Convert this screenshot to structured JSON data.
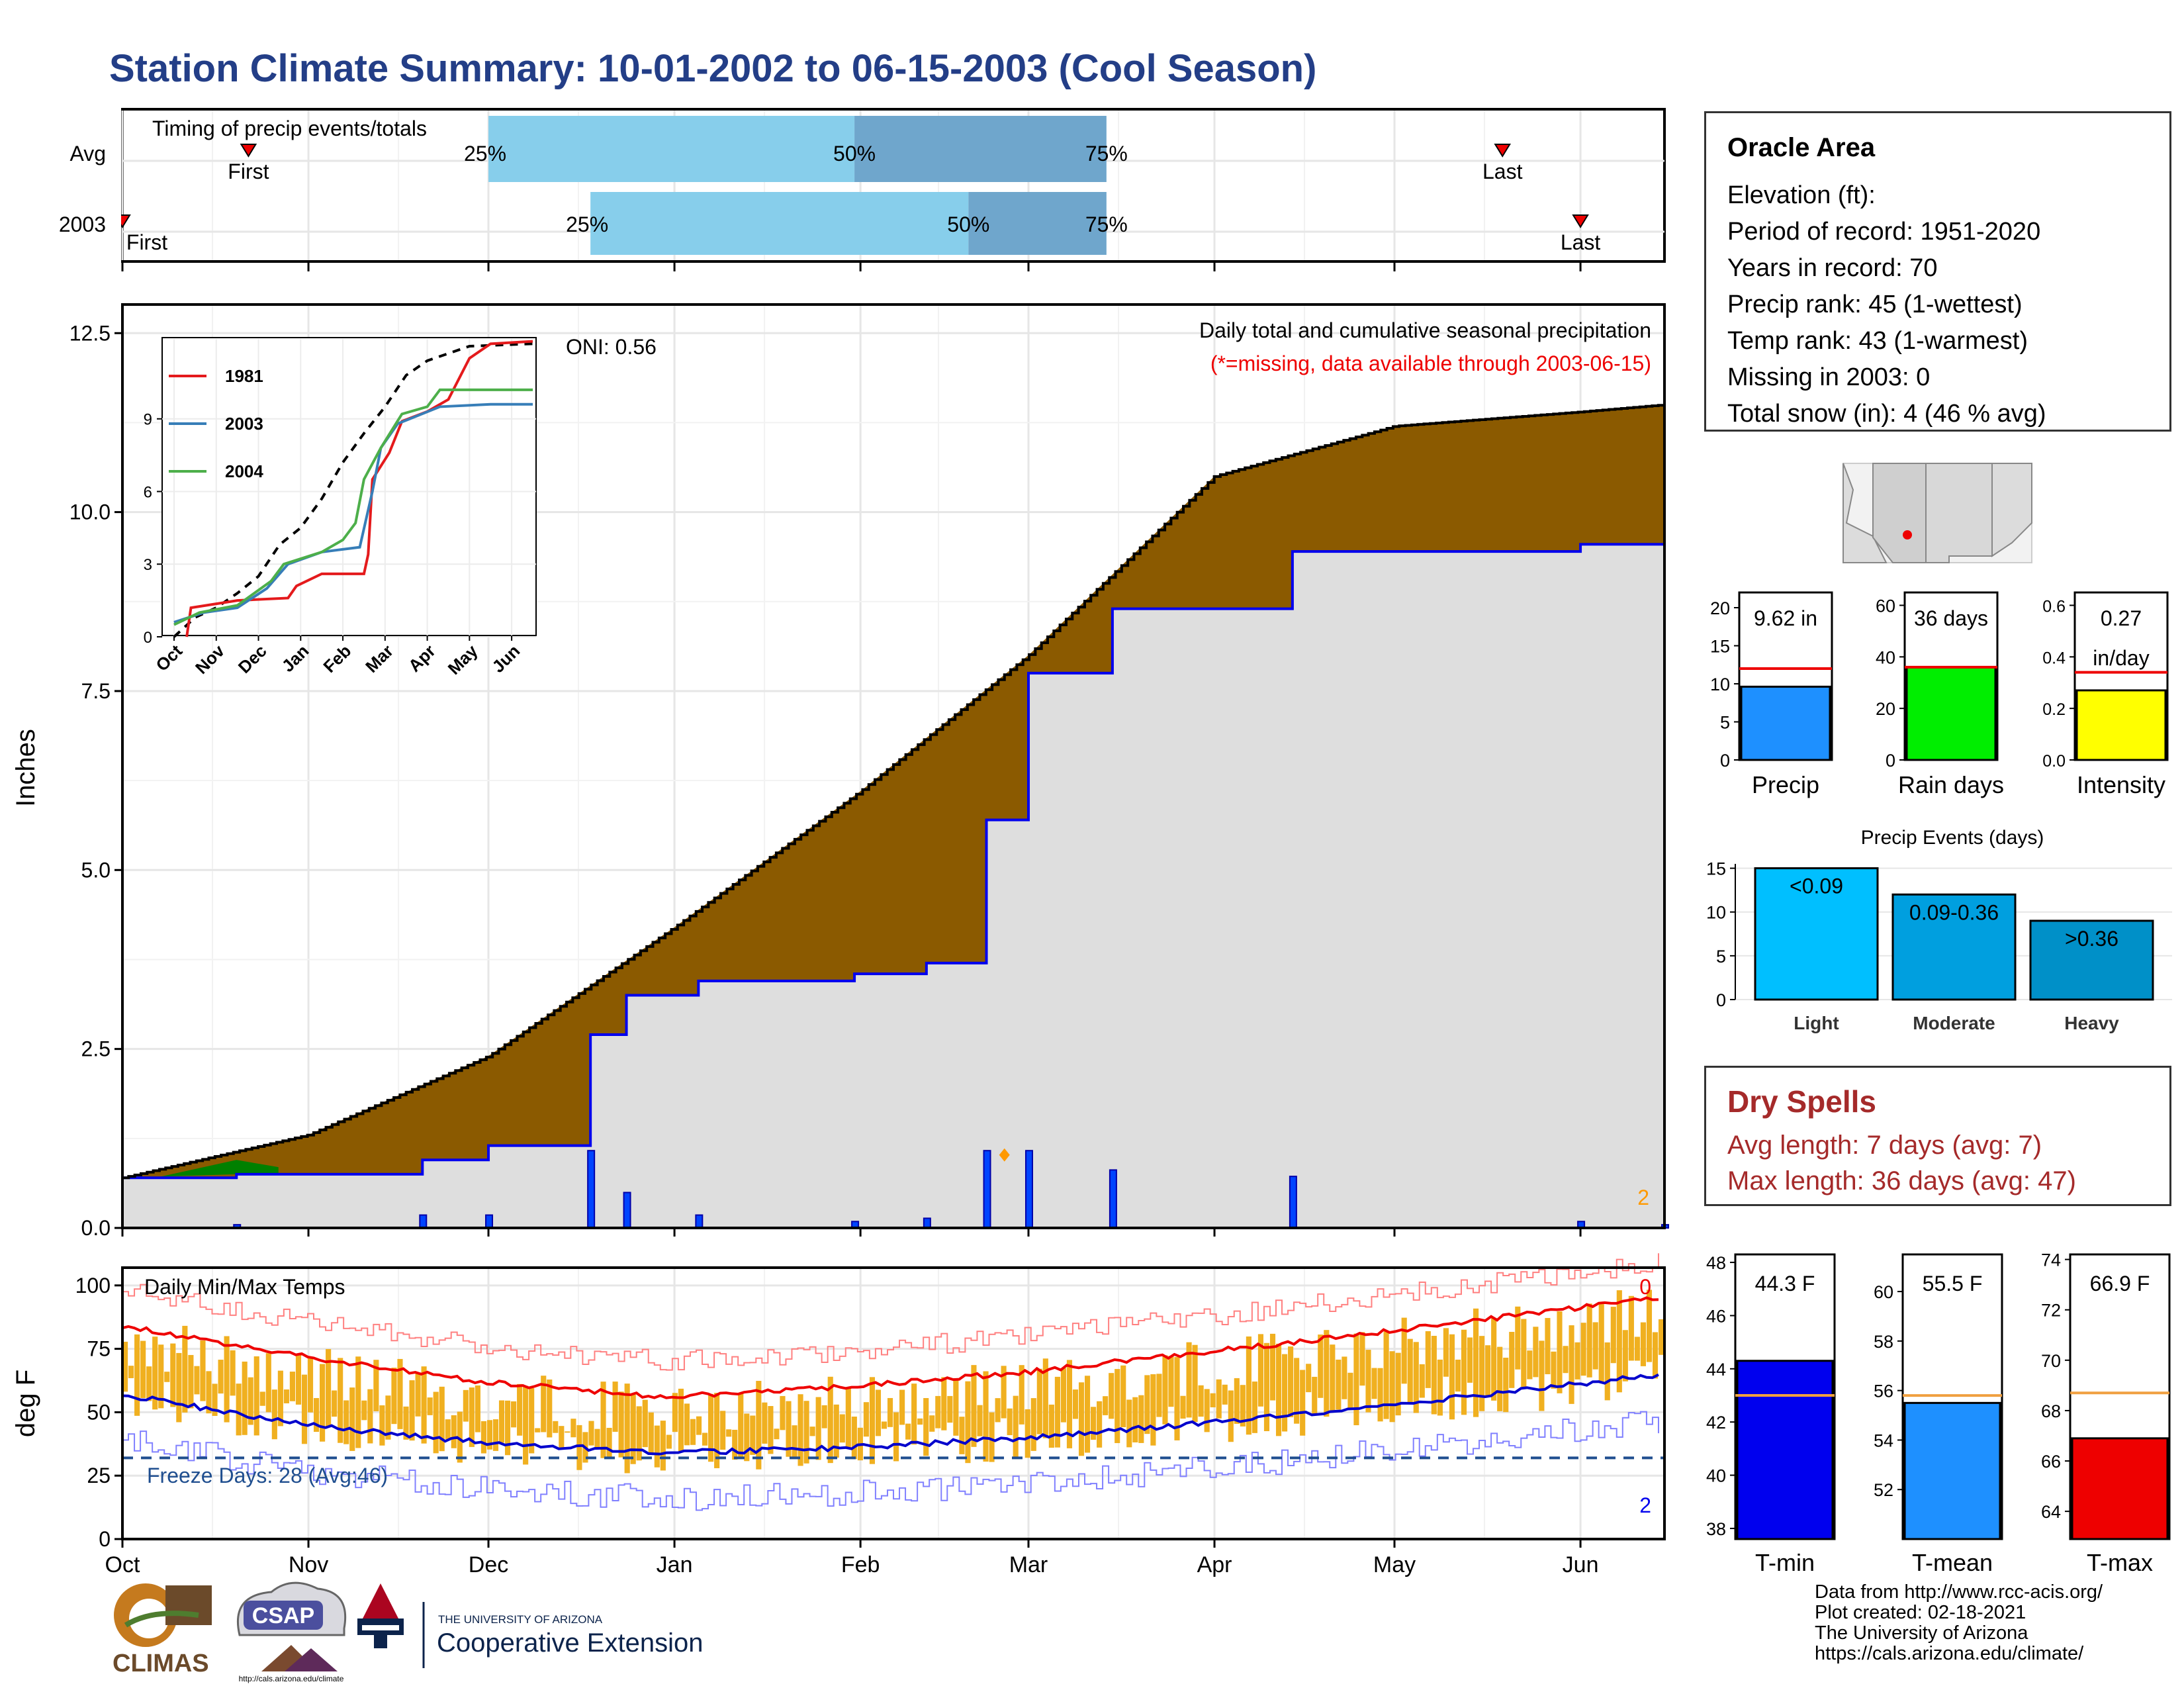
{
  "title": "Station Climate Summary: 10-01-2002 to 06-15-2003 (Cool Season)",
  "colors": {
    "title": "#233e87",
    "brown": "#8b5a00",
    "gray": "#dedede",
    "blue": "#0000ee",
    "green": "#008000",
    "gold": "#f0b020",
    "sky": "#87ceeb",
    "steel": "#6fa6cc",
    "dryspell": "#a52a2a"
  },
  "timing": {
    "label": "Timing of precip events/totals",
    "rows": [
      {
        "name": "Avg",
        "p25": "25%",
        "p50": "50%",
        "p75": "75%",
        "first": "First",
        "last": "Last",
        "first_date": "2002-10-22",
        "p25_date": "2002-12-01",
        "p50_date": "2003-01-31",
        "p75_date": "2003-03-14",
        "last_date": "2003-05-19"
      },
      {
        "name": "2003",
        "p25": "25%",
        "p50": "50%",
        "p75": "75%",
        "first": "First",
        "last": "Last",
        "first_date": "2002-10-01",
        "p25_date": "2002-12-18",
        "p50_date": "2003-02-19",
        "p75_date": "2003-03-14",
        "last_date": "2003-06-01"
      }
    ]
  },
  "precip_panel": {
    "ylabel": "Inches",
    "yticks": [
      "0.0",
      "2.5",
      "5.0",
      "7.5",
      "10.0",
      "12.5"
    ],
    "annotation": "Daily total and cumulative seasonal precipitation",
    "missing_note": "(*=missing, data available through 2003-06-15)",
    "oni": "ONI: 0.56",
    "corner_count": "2",
    "inset_legend": [
      {
        "name": "1981",
        "color": "#e41a1c"
      },
      {
        "name": "2003",
        "color": "#377eb8"
      },
      {
        "name": "2004",
        "color": "#4daf4a"
      }
    ],
    "inset_yticks": [
      "0",
      "3",
      "6",
      "9"
    ],
    "inset_months": [
      "Oct",
      "Nov",
      "Dec",
      "Jan",
      "Feb",
      "Mar",
      "Apr",
      "May",
      "Jun"
    ]
  },
  "temp_panel": {
    "ylabel": "deg F",
    "label": "Daily Min/Max Temps",
    "freeze": "Freeze Days: 28 (Avg:46)",
    "top_count": "0",
    "bottom_count": "2",
    "yticks": [
      "0",
      "25",
      "50",
      "75",
      "100"
    ]
  },
  "months": [
    "Oct",
    "Nov",
    "Dec",
    "Jan",
    "Feb",
    "Mar",
    "Apr",
    "May",
    "Jun"
  ],
  "chart_data": [
    {
      "type": "area",
      "title": "Daily total and cumulative seasonal precipitation",
      "ylabel": "Inches",
      "ylim": [
        0,
        12.5
      ],
      "series": [
        {
          "name": "average cumulative",
          "x": [
            "2002-10-01",
            "2002-11-01",
            "2002-12-01",
            "2003-01-01",
            "2003-02-01",
            "2003-03-01",
            "2003-04-01",
            "2003-05-01",
            "2003-06-01",
            "2003-06-15"
          ],
          "values": [
            0.7,
            1.3,
            2.4,
            4.2,
            6.1,
            8.0,
            10.5,
            11.2,
            11.4,
            11.5
          ]
        },
        {
          "name": "2003 cumulative",
          "x": [
            "2002-10-01",
            "2002-10-20",
            "2002-11-20",
            "2002-12-01",
            "2002-12-18",
            "2002-12-24",
            "2003-01-05",
            "2003-01-31",
            "2003-02-12",
            "2003-02-22",
            "2003-03-01",
            "2003-03-15",
            "2003-04-14",
            "2003-06-01",
            "2003-06-15"
          ],
          "values": [
            0.7,
            0.75,
            0.95,
            1.15,
            2.7,
            3.25,
            3.45,
            3.55,
            3.7,
            5.7,
            7.75,
            8.65,
            9.45,
            9.55,
            9.6
          ]
        }
      ]
    },
    {
      "type": "bar",
      "title": "Precip",
      "values": [
        9.62
      ],
      "avg": 12.0,
      "label": "9.62 in",
      "ylim": [
        0,
        22
      ]
    },
    {
      "type": "bar",
      "title": "Rain days",
      "values": [
        36
      ],
      "avg": 36,
      "label": "36 days",
      "ylim": [
        0,
        65
      ]
    },
    {
      "type": "bar",
      "title": "Intensity",
      "values": [
        0.27
      ],
      "avg": 0.34,
      "label": "0.27 in/day",
      "ylim": [
        0,
        0.65
      ]
    },
    {
      "type": "bar",
      "title": "Precip Events (days)",
      "categories": [
        "Light",
        "Moderate",
        "Heavy"
      ],
      "values": [
        15,
        12,
        9
      ],
      "labels": [
        "<0.09",
        "0.09-0.36",
        ">0.36"
      ],
      "ylim": [
        0,
        15.5
      ]
    },
    {
      "type": "bar",
      "title": "T-min",
      "values": [
        44.3
      ],
      "avg": 43.0,
      "label": "44.3 F",
      "ylim": [
        38,
        48
      ]
    },
    {
      "type": "bar",
      "title": "T-mean",
      "values": [
        55.5
      ],
      "avg": 55.8,
      "label": "55.5 F",
      "ylim": [
        50,
        61
      ]
    },
    {
      "type": "bar",
      "title": "T-max",
      "values": [
        66.9
      ],
      "avg": 68.7,
      "label": "66.9 F",
      "ylim": [
        63,
        74
      ]
    },
    {
      "type": "line",
      "title": "Daily Min/Max Temps",
      "ylabel": "deg F",
      "ylim": [
        0,
        105
      ],
      "series": [
        {
          "name": "avg max",
          "x": [
            "Oct",
            "Nov",
            "Dec",
            "Jan",
            "Feb",
            "Mar",
            "Apr",
            "May",
            "Jun"
          ],
          "values": [
            84,
            72,
            62,
            56,
            60,
            66,
            74,
            82,
            91
          ]
        },
        {
          "name": "avg min",
          "x": [
            "Oct",
            "Nov",
            "Dec",
            "Jan",
            "Feb",
            "Mar",
            "Apr",
            "May",
            "Jun"
          ],
          "values": [
            57,
            45,
            38,
            34,
            36,
            40,
            46,
            53,
            61
          ]
        }
      ]
    }
  ],
  "oracle": {
    "title": "Oracle Area",
    "lines": [
      "Elevation (ft):",
      "Period of record: 1951-2020",
      "Years in record: 70",
      "Precip rank: 45 (1-wettest)",
      "Temp rank: 43 (1-warmest)",
      "Missing in 2003: 0",
      "Total snow (in): 4 (46 % avg)"
    ]
  },
  "dry_spells": {
    "title": "Dry Spells",
    "avg": "Avg length: 7 days (avg: 7)",
    "max": "Max length: 36 days (avg: 47)"
  },
  "small_bars": {
    "precip": {
      "label": "9.62 in",
      "title": "Precip",
      "ticks": [
        "0",
        "5",
        "10",
        "15",
        "20"
      ]
    },
    "raindays": {
      "label": "36 days",
      "title": "Rain days",
      "ticks": [
        "0",
        "20",
        "40",
        "60"
      ]
    },
    "intensity": {
      "label1": "0.27",
      "label2": "in/day",
      "title": "Intensity",
      "ticks": [
        "0.0",
        "0.2",
        "0.4",
        "0.6"
      ]
    }
  },
  "events": {
    "title": "Precip Events (days)",
    "ticks": [
      "0",
      "5",
      "10",
      "15"
    ],
    "bars": [
      {
        "label": "<0.09",
        "cat": "Light"
      },
      {
        "label": "0.09-0.36",
        "cat": "Moderate"
      },
      {
        "label": ">0.36",
        "cat": "Heavy"
      }
    ]
  },
  "temp_bars": {
    "tmin": {
      "label": "44.3 F",
      "title": "T-min",
      "ticks": [
        "38",
        "40",
        "42",
        "44",
        "46",
        "48"
      ]
    },
    "tmean": {
      "label": "55.5 F",
      "title": "T-mean",
      "ticks": [
        "52",
        "54",
        "56",
        "58",
        "60"
      ]
    },
    "tmax": {
      "label": "66.9 F",
      "title": "T-max",
      "ticks": [
        "64",
        "66",
        "68",
        "70",
        "72",
        "74"
      ]
    }
  },
  "logos": {
    "climas": "CLIMAS",
    "csap": "CSAP",
    "csap_url": "http://cals.arizona.edu/climate",
    "ua_top": "THE UNIVERSITY OF ARIZONA",
    "ua_bottom": "Cooperative Extension"
  },
  "footer": [
    "Data from http://www.rcc-acis.org/",
    "Plot created: 02-18-2021",
    "The University of Arizona",
    "https://cals.arizona.edu/climate/"
  ]
}
